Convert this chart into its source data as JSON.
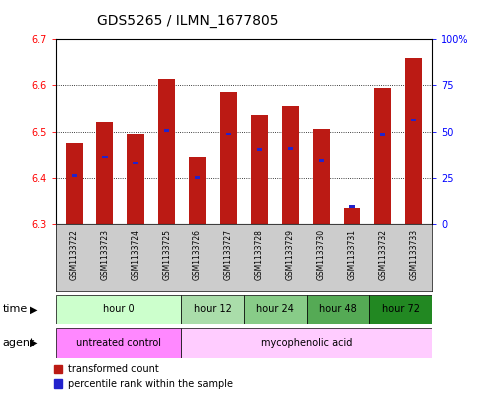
{
  "title": "GDS5265 / ILMN_1677805",
  "samples": [
    "GSM1133722",
    "GSM1133723",
    "GSM1133724",
    "GSM1133725",
    "GSM1133726",
    "GSM1133727",
    "GSM1133728",
    "GSM1133729",
    "GSM1133730",
    "GSM1133731",
    "GSM1133732",
    "GSM1133733"
  ],
  "bar_tops": [
    6.475,
    6.52,
    6.495,
    6.615,
    6.445,
    6.585,
    6.535,
    6.555,
    6.505,
    6.335,
    6.595,
    6.66
  ],
  "bar_bottom": 6.3,
  "percentile_values": [
    6.405,
    6.445,
    6.432,
    6.502,
    6.4,
    6.495,
    6.462,
    6.464,
    6.437,
    6.338,
    6.494,
    6.525
  ],
  "ylim": [
    6.3,
    6.7
  ],
  "yticks_left": [
    6.3,
    6.4,
    6.5,
    6.6,
    6.7
  ],
  "yticks_right": [
    0,
    25,
    50,
    75,
    100
  ],
  "bar_color": "#BB1A14",
  "percentile_color": "#2222CC",
  "time_groups": [
    {
      "label": "hour 0",
      "start": 0,
      "end": 4,
      "color": "#CCFFCC"
    },
    {
      "label": "hour 12",
      "start": 4,
      "end": 6,
      "color": "#AADDAA"
    },
    {
      "label": "hour 24",
      "start": 6,
      "end": 8,
      "color": "#88CC88"
    },
    {
      "label": "hour 48",
      "start": 8,
      "end": 10,
      "color": "#55AA55"
    },
    {
      "label": "hour 72",
      "start": 10,
      "end": 12,
      "color": "#228822"
    }
  ],
  "agent_groups": [
    {
      "label": "untreated control",
      "start": 0,
      "end": 4,
      "color": "#FF88FF"
    },
    {
      "label": "mycophenolic acid",
      "start": 4,
      "end": 12,
      "color": "#FFCCFF"
    }
  ],
  "legend_items": [
    {
      "label": "transformed count",
      "color": "#BB1A14"
    },
    {
      "label": "percentile rank within the sample",
      "color": "#2222CC"
    }
  ],
  "bg_color": "#FFFFFF",
  "title_fontsize": 10,
  "tick_fontsize": 7,
  "sample_fontsize": 5.5,
  "row_fontsize": 7,
  "legend_fontsize": 7
}
